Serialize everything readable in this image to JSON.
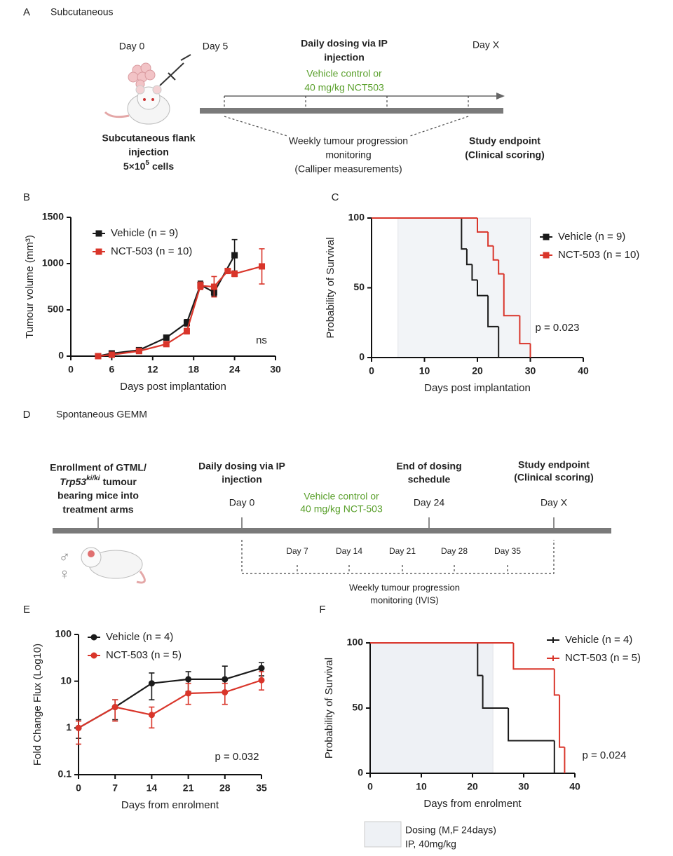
{
  "schematic_a": {
    "label": "A",
    "title": "Subcutaneous",
    "day0": "Day 0",
    "day5": "Day 5",
    "dayx": "Day X",
    "dosing": [
      "Daily dosing via IP",
      "injection"
    ],
    "treatment": [
      "Vehicle control or",
      "40 mg/kg NCT503"
    ],
    "injection": [
      "Subcutaneous flank",
      "injection"
    ],
    "cells": {
      "base": "5×10",
      "exponent": "5",
      "unit": "cells"
    },
    "monitoring": [
      "Weekly tumour progression",
      "monitoring",
      "(Calliper measurements)"
    ],
    "endpoint": [
      "Study endpoint",
      "(Clinical scoring)"
    ]
  },
  "schematic_d": {
    "label": "D",
    "title": "Spontaneous GEMM",
    "enrollment": {
      "line1": "Enrollment of GTML/",
      "gene": "Trp53",
      "superscript": "ki/ki",
      "rest": "tumour",
      "line3": "bearing mice into",
      "line4": "treatment arms"
    },
    "dosing": [
      "Daily dosing via IP",
      "injection"
    ],
    "day0": "Day 0",
    "treatment": [
      "Vehicle control or",
      "40 mg/kg NCT-503"
    ],
    "end_dosing": [
      "End of dosing",
      "schedule"
    ],
    "day24": "Day 24",
    "endpoint": [
      "Study endpoint",
      "(Clinical scoring)"
    ],
    "dayx": "Day X",
    "weekly_days": [
      "Day 7",
      "Day 14",
      "Day 21",
      "Day 28",
      "Day 35"
    ],
    "monitoring": [
      "Weekly tumour progression",
      "monitoring (IVIS)"
    ],
    "sex_symbols": [
      "♂",
      "♀"
    ]
  },
  "chart_data": [
    {
      "panel": "B",
      "type": "line",
      "xlabel": "Days post implantation",
      "ylabel": "Tumour volume (mm³)",
      "xlim": [
        0,
        30
      ],
      "xticks": [
        0,
        6,
        12,
        18,
        24,
        30
      ],
      "ylim": [
        0,
        1500
      ],
      "yticks": [
        0,
        500,
        1000,
        1500
      ],
      "marker": "square",
      "legend": "upper left",
      "annotation": "ns",
      "series": [
        {
          "name": "Vehicle (n = 9)",
          "color": "#1a1a1a",
          "x": [
            4,
            6,
            10,
            14,
            17,
            19,
            21,
            24
          ],
          "values": [
            0,
            30,
            65,
            200,
            360,
            770,
            690,
            1090
          ],
          "errors": [
            5,
            10,
            15,
            25,
            35,
            40,
            40,
            170
          ]
        },
        {
          "name": "NCT-503 (n = 10)",
          "color": "#d9352a",
          "x": [
            4,
            6,
            10,
            14,
            17,
            19,
            21,
            23,
            24,
            28
          ],
          "values": [
            0,
            15,
            55,
            130,
            270,
            760,
            750,
            920,
            890,
            970
          ],
          "errors": [
            5,
            8,
            12,
            20,
            30,
            40,
            110,
            20,
            30,
            190
          ]
        }
      ]
    },
    {
      "panel": "C",
      "type": "step",
      "xlabel": "Days post implantation",
      "ylabel": "Probability of Survival",
      "xlim": [
        0,
        40
      ],
      "xticks": [
        0,
        10,
        20,
        30,
        40
      ],
      "ylim": [
        0,
        100
      ],
      "yticks": [
        0,
        50,
        100
      ],
      "marker": "square",
      "legend": "upper right",
      "annotation": "p = 0.023",
      "shade": [
        5,
        30
      ],
      "shade_color": "#f2f4f7",
      "series": [
        {
          "name": "Vehicle (n = 9)",
          "color": "#1a1a1a",
          "x": [
            0,
            17,
            18,
            19,
            20,
            22,
            24
          ],
          "values": [
            100,
            77.8,
            66.7,
            55.6,
            44.4,
            22.2,
            0
          ]
        },
        {
          "name": "NCT-503 (n = 10)",
          "color": "#d9352a",
          "x": [
            0,
            20,
            22,
            23,
            24,
            25,
            28,
            30
          ],
          "values": [
            100,
            90,
            80,
            70,
            60,
            30,
            10,
            0
          ]
        }
      ]
    },
    {
      "panel": "E",
      "type": "line",
      "log_y": true,
      "xlabel": "Days from enrolment",
      "ylabel": "Fold Change Flux (Log10)",
      "xlim": [
        0,
        35
      ],
      "xticks": [
        0,
        7,
        14,
        21,
        28,
        35
      ],
      "ylim": [
        0.1,
        100
      ],
      "yticks": [
        0.1,
        1,
        10,
        100
      ],
      "marker": "circle",
      "legend": "upper left",
      "annotation": "p = 0.032",
      "series": [
        {
          "name": "Vehicle (n = 4)",
          "color": "#1a1a1a",
          "x": [
            0,
            7,
            14,
            21,
            28,
            35
          ],
          "values": [
            1,
            2.8,
            9,
            11,
            11,
            19
          ],
          "lower": [
            0.6,
            1.5,
            4,
            6,
            6,
            13
          ],
          "upper": [
            1.5,
            4,
            15,
            16,
            21,
            25
          ]
        },
        {
          "name": "NCT-503 (n = 5)",
          "color": "#d9352a",
          "x": [
            0,
            7,
            14,
            21,
            28,
            35
          ],
          "values": [
            1,
            2.8,
            1.9,
            5.5,
            5.8,
            10.5
          ],
          "lower": [
            0.45,
            1.4,
            1,
            3.2,
            3.2,
            6.5
          ],
          "upper": [
            1.4,
            4,
            2.8,
            9,
            9,
            16
          ]
        }
      ]
    },
    {
      "panel": "F",
      "type": "step",
      "xlabel": "Days from enrolment",
      "ylabel": "Probability of Survival",
      "xlim": [
        0,
        40
      ],
      "xticks": [
        0,
        10,
        20,
        30,
        40
      ],
      "ylim": [
        0,
        100
      ],
      "yticks": [
        0,
        50,
        100
      ],
      "marker": "tick",
      "legend": "upper right",
      "annotation": "p = 0.024",
      "shade": [
        0,
        24
      ],
      "shade_color": "#eef1f5",
      "shade_legend": [
        "Dosing (M,F 24days)",
        "IP, 40mg/kg"
      ],
      "series": [
        {
          "name": "Vehicle (n = 4)",
          "color": "#1a1a1a",
          "x": [
            0,
            21,
            22,
            27,
            36
          ],
          "values": [
            100,
            75,
            50,
            25,
            0
          ]
        },
        {
          "name": "NCT-503 (n = 5)",
          "color": "#d9352a",
          "x": [
            0,
            28,
            36,
            37,
            38
          ],
          "values": [
            100,
            80,
            60,
            20,
            0
          ]
        }
      ]
    }
  ]
}
